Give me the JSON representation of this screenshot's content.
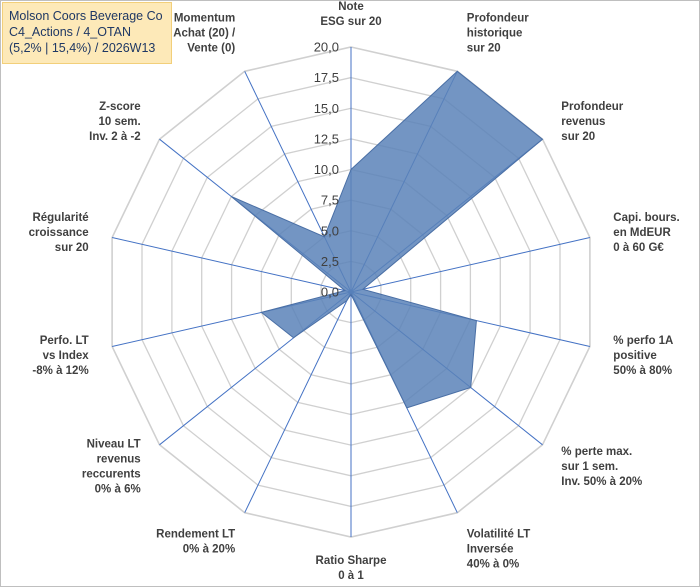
{
  "info_box": {
    "line1": "Molson Coors Beverage Co",
    "line2": "C4_Actions / 4_OTAN",
    "line3": "(5,2% | 15,4%) / 2026W13"
  },
  "chart_data": {
    "type": "radar",
    "title": "",
    "rmin": 0,
    "rmax": 20,
    "tick_step": 2.5,
    "tick_labels": [
      "0,0",
      "2,5",
      "5,0",
      "7,5",
      "10,0",
      "12,5",
      "15,0",
      "17,5",
      "20,0"
    ],
    "grid": true,
    "axes": [
      {
        "label": [
          "Note",
          "ESG sur 20"
        ]
      },
      {
        "label": [
          "Profondeur",
          "historique",
          "sur 20"
        ]
      },
      {
        "label": [
          "Profondeur",
          "revenus",
          "sur 20"
        ]
      },
      {
        "label": [
          "Capi. bours.",
          "en MdEUR",
          "0 à 60 G€"
        ]
      },
      {
        "label": [
          "% perfo 1A",
          "positive",
          "50% à 80%"
        ]
      },
      {
        "label": [
          "% perte max.",
          "sur 1 sem.",
          "Inv. 50% à 20%"
        ]
      },
      {
        "label": [
          "Volatilité LT",
          "Inversée",
          "40% à 0%"
        ]
      },
      {
        "label": [
          "Ratio Sharpe",
          "0 à 1"
        ]
      },
      {
        "label": [
          "Rendement LT",
          "0% à 20%"
        ]
      },
      {
        "label": [
          "Niveau LT",
          "revenus",
          "reccurents",
          "0% à 6%"
        ]
      },
      {
        "label": [
          "Perfo. LT",
          "vs Index",
          "-8% à 12%"
        ]
      },
      {
        "label": [
          "Régularité",
          "croissance",
          "sur 20"
        ]
      },
      {
        "label": [
          "Z-score",
          "10 sem.",
          "Inv. 2 à -2"
        ]
      },
      {
        "label": [
          "Momentum",
          "Achat (20) /",
          "Vente (0)"
        ]
      }
    ],
    "series": [
      {
        "name": "Molson Coors Beverage Co",
        "color": "#5b82b8",
        "fill_opacity": 0.85,
        "values": [
          10,
          20,
          20,
          1,
          10.5,
          12.5,
          10.5,
          0.2,
          0.8,
          6,
          7.5,
          0.5,
          12.5,
          5
        ]
      }
    ]
  }
}
